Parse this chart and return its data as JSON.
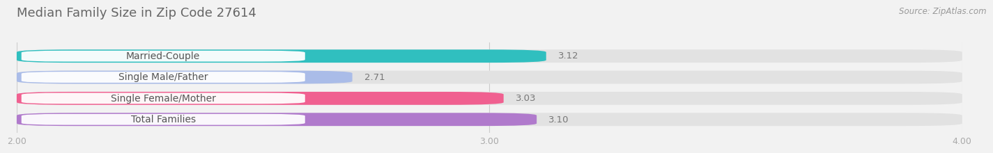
{
  "title": "Median Family Size in Zip Code 27614",
  "source": "Source: ZipAtlas.com",
  "categories": [
    "Married-Couple",
    "Single Male/Father",
    "Single Female/Mother",
    "Total Families"
  ],
  "values": [
    3.12,
    2.71,
    3.03,
    3.1
  ],
  "bar_colors": [
    "#30bfbf",
    "#aabce8",
    "#f06090",
    "#b07acc"
  ],
  "xlim": [
    2.0,
    4.0
  ],
  "xticks": [
    2.0,
    3.0,
    4.0
  ],
  "xtick_labels": [
    "2.00",
    "3.00",
    "4.00"
  ],
  "bar_height": 0.62,
  "background_color": "#f2f2f2",
  "bar_bg_color": "#e2e2e2",
  "title_fontsize": 13,
  "label_fontsize": 10,
  "value_fontsize": 9.5,
  "tick_fontsize": 9,
  "source_fontsize": 8.5
}
